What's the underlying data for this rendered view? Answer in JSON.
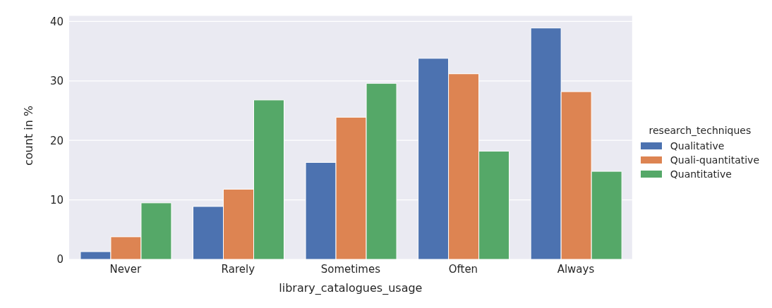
{
  "chart_data": {
    "type": "bar",
    "xlabel": "library_catalogues_usage",
    "ylabel": "count in %",
    "legend_title": "research_techniques",
    "categories": [
      "Never",
      "Rarely",
      "Sometimes",
      "Often",
      "Always"
    ],
    "series": [
      {
        "name": "Qualitative",
        "color": "#4c72b0",
        "values": [
          1.3,
          8.9,
          16.3,
          33.8,
          38.9
        ]
      },
      {
        "name": "Quali-quantitative",
        "color": "#dd8452",
        "values": [
          3.8,
          11.8,
          23.9,
          31.2,
          28.2
        ]
      },
      {
        "name": "Quantitative",
        "color": "#55a868",
        "values": [
          9.5,
          26.8,
          29.6,
          18.2,
          14.8
        ]
      }
    ],
    "ylim": [
      0,
      41
    ],
    "yticks": [
      0,
      10,
      20,
      30,
      40
    ],
    "grid": "y",
    "legend": "right"
  }
}
